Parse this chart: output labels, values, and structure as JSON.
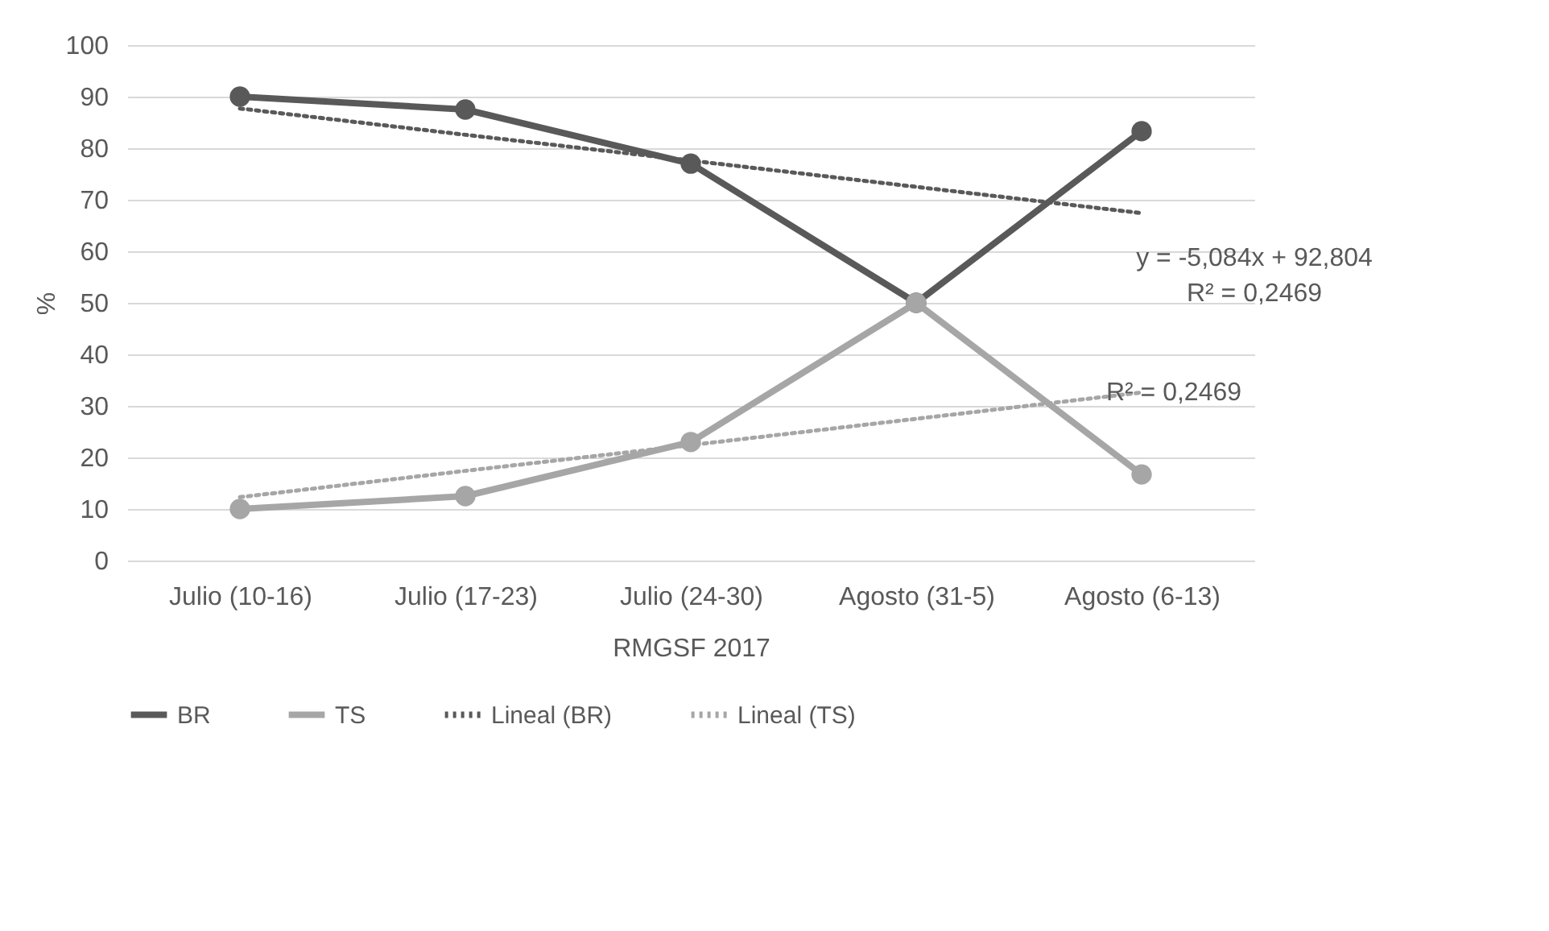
{
  "chart_data": {
    "type": "line",
    "categories": [
      "Julio (10-16)",
      "Julio (17-23)",
      "Julio (24-30)",
      "Agosto (31-5)",
      "Agosto (6-13)"
    ],
    "xlabel": "RMGSF 2017",
    "ylabel": "%",
    "ylim": [
      0,
      100
    ],
    "yticks": [
      0,
      10,
      20,
      30,
      40,
      50,
      60,
      70,
      80,
      90,
      100
    ],
    "grid": "y",
    "legend": "bottom",
    "series": [
      {
        "name": "BR",
        "color": "#595959",
        "values": [
          90,
          87.5,
          77,
          50,
          83.3
        ],
        "marker": "circle",
        "line_style": "solid"
      },
      {
        "name": "TS",
        "color": "#a6a6a6",
        "values": [
          10,
          12.5,
          23,
          50,
          16.7
        ],
        "marker": "circle",
        "line_style": "solid"
      },
      {
        "name": "Lineal (BR)",
        "color": "#595959",
        "values": [
          87.7,
          82.6,
          77.6,
          72.5,
          67.4
        ],
        "marker": "none",
        "line_style": "dotted"
      },
      {
        "name": "Lineal (TS)",
        "color": "#a6a6a6",
        "values": [
          12.3,
          17.4,
          22.4,
          27.5,
          32.6
        ],
        "marker": "none",
        "line_style": "dotted"
      }
    ],
    "annotations": [
      "y = -5,084x + 92,804",
      "R² = 0,2469",
      {
        "text": "R² = 0,2469",
        "x": "Agosto (6-13)",
        "y": 32.6
      }
    ]
  }
}
